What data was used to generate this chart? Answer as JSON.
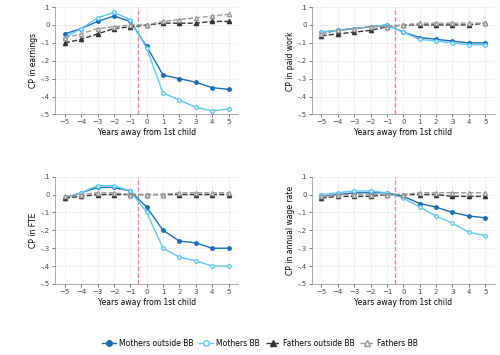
{
  "x": [
    -5,
    -4,
    -3,
    -2,
    -1,
    0,
    1,
    2,
    3,
    4,
    5
  ],
  "panels": [
    {
      "ylabel": "CP in earnings",
      "ylim": [
        -0.5,
        0.1
      ],
      "yticks": [
        0.1,
        0,
        -0.1,
        -0.2,
        -0.3,
        -0.4,
        -0.5
      ],
      "yticklabels": [
        ".1",
        "0",
        "-.1",
        "-.2",
        "-.3",
        "-.4",
        "-.5"
      ],
      "mothers_outside": [
        -0.05,
        -0.02,
        0.02,
        0.05,
        0.02,
        -0.12,
        -0.28,
        -0.3,
        -0.32,
        -0.35,
        -0.36
      ],
      "mothers_bb": [
        -0.07,
        -0.02,
        0.04,
        0.07,
        0.03,
        -0.13,
        -0.38,
        -0.42,
        -0.46,
        -0.48,
        -0.47
      ],
      "fathers_outside": [
        -0.1,
        -0.08,
        -0.05,
        -0.02,
        -0.01,
        0.0,
        0.01,
        0.01,
        0.01,
        0.02,
        0.02
      ],
      "fathers_bb": [
        -0.07,
        -0.05,
        -0.02,
        -0.01,
        0.0,
        0.0,
        0.02,
        0.03,
        0.04,
        0.05,
        0.06
      ]
    },
    {
      "ylabel": "CP in paid work",
      "ylim": [
        -0.5,
        0.1
      ],
      "yticks": [
        0.1,
        0,
        -0.1,
        -0.2,
        -0.3,
        -0.4,
        -0.5
      ],
      "yticklabels": [
        ".1",
        "0",
        "-.1",
        "-.2",
        "-.3",
        "-.4",
        "-.5"
      ],
      "mothers_outside": [
        -0.04,
        -0.03,
        -0.02,
        -0.01,
        0.0,
        -0.04,
        -0.07,
        -0.08,
        -0.09,
        -0.1,
        -0.1
      ],
      "mothers_bb": [
        -0.04,
        -0.03,
        -0.02,
        -0.01,
        0.0,
        -0.04,
        -0.08,
        -0.09,
        -0.1,
        -0.11,
        -0.11
      ],
      "fathers_outside": [
        -0.06,
        -0.05,
        -0.04,
        -0.03,
        -0.01,
        0.0,
        0.0,
        0.0,
        0.0,
        0.0,
        0.01
      ],
      "fathers_bb": [
        -0.05,
        -0.03,
        -0.02,
        -0.01,
        -0.01,
        0.0,
        0.01,
        0.01,
        0.01,
        0.01,
        0.01
      ]
    },
    {
      "ylabel": "CP in FTE",
      "ylim": [
        -0.5,
        0.1
      ],
      "yticks": [
        0.1,
        0,
        -0.1,
        -0.2,
        -0.3,
        -0.4,
        -0.5
      ],
      "yticklabels": [
        ".1",
        "0",
        "-.1",
        "-.2",
        "-.3",
        "-.4",
        "-.5"
      ],
      "mothers_outside": [
        -0.02,
        0.01,
        0.04,
        0.04,
        0.02,
        -0.07,
        -0.2,
        -0.26,
        -0.27,
        -0.3,
        -0.3
      ],
      "mothers_bb": [
        -0.02,
        0.01,
        0.05,
        0.05,
        0.02,
        -0.1,
        -0.3,
        -0.35,
        -0.37,
        -0.4,
        -0.4
      ],
      "fathers_outside": [
        -0.02,
        -0.01,
        0.0,
        0.0,
        0.0,
        0.0,
        0.0,
        0.0,
        0.0,
        0.0,
        0.0
      ],
      "fathers_bb": [
        -0.01,
        0.0,
        0.01,
        0.01,
        0.0,
        0.0,
        0.0,
        0.01,
        0.01,
        0.01,
        0.01
      ]
    },
    {
      "ylabel": "CP in annual wage rate",
      "ylim": [
        -0.5,
        0.1
      ],
      "yticks": [
        0.1,
        0,
        -0.1,
        -0.2,
        -0.3,
        -0.4,
        -0.5
      ],
      "yticklabels": [
        ".1",
        "0",
        "-.1",
        "-.2",
        "-.3",
        "-.4",
        "-.5"
      ],
      "mothers_outside": [
        -0.01,
        0.0,
        0.01,
        0.01,
        0.01,
        -0.01,
        -0.05,
        -0.07,
        -0.1,
        -0.12,
        -0.13
      ],
      "mothers_bb": [
        0.0,
        0.01,
        0.02,
        0.02,
        0.01,
        -0.02,
        -0.07,
        -0.12,
        -0.16,
        -0.21,
        -0.23
      ],
      "fathers_outside": [
        -0.02,
        -0.01,
        -0.01,
        -0.01,
        0.0,
        0.0,
        0.0,
        0.0,
        -0.01,
        -0.01,
        -0.01
      ],
      "fathers_bb": [
        -0.01,
        0.0,
        0.0,
        0.0,
        0.0,
        0.0,
        0.01,
        0.01,
        0.01,
        0.01,
        0.01
      ]
    }
  ],
  "color_mothers_outside": "#1a6db5",
  "color_mothers_bb": "#5bc8f5",
  "color_fathers_outside": "#333333",
  "color_fathers_bb": "#999999",
  "xlabel": "Years away from 1st child",
  "vline_x": -0.5,
  "legend_labels": [
    "Mothers outside BB",
    "Mothers BB",
    "Fathers outside BB",
    "Fathers BB"
  ]
}
